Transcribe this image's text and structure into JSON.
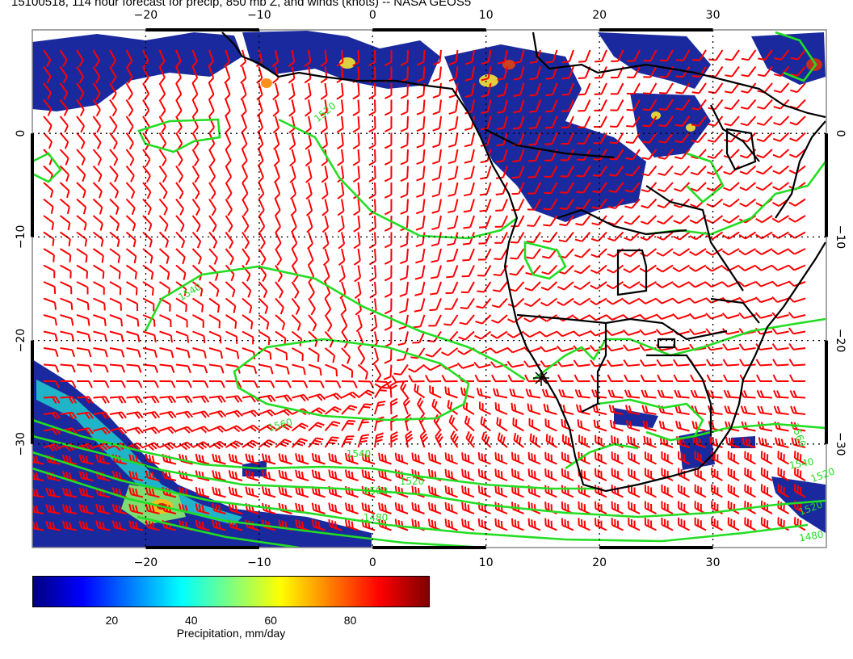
{
  "title": "15100518, 114 hour forecast for precip, 850 mb Z, and winds (knots) -- NASA GEOS5",
  "map": {
    "region": "Southern Africa / South Atlantic",
    "lon_range": [
      -30,
      40
    ],
    "lat_range": [
      -40,
      10
    ],
    "top_lon_labels": [
      "−20",
      "−10",
      "0",
      "10",
      "20",
      "30"
    ],
    "bottom_lon_labels": [
      "−20",
      "−10",
      "0",
      "10",
      "20",
      "30"
    ],
    "left_lat_labels": [
      "0",
      "−10",
      "−20",
      "−30"
    ],
    "right_lat_labels": [
      "0",
      "−10",
      "−20",
      "−30"
    ],
    "contour_labels": [
      "1520",
      "1540",
      "1560",
      "1540",
      "1520",
      "1500",
      "1480",
      "1520",
      "1560",
      "1540",
      "1520",
      "1480"
    ],
    "colors": {
      "contour": "#22dd22",
      "wind_barb": "#ff0000",
      "coastline": "#000000",
      "grid": "#000000"
    }
  },
  "colorbar": {
    "title": "Precipitation, mm/day",
    "tick_labels": [
      "20",
      "40",
      "60",
      "80"
    ],
    "range": [
      0,
      100
    ],
    "colors": [
      "#00007f",
      "#0000ff",
      "#007fff",
      "#00ffff",
      "#7fff7f",
      "#ffff00",
      "#ff7f00",
      "#ff0000",
      "#7f0000"
    ]
  }
}
